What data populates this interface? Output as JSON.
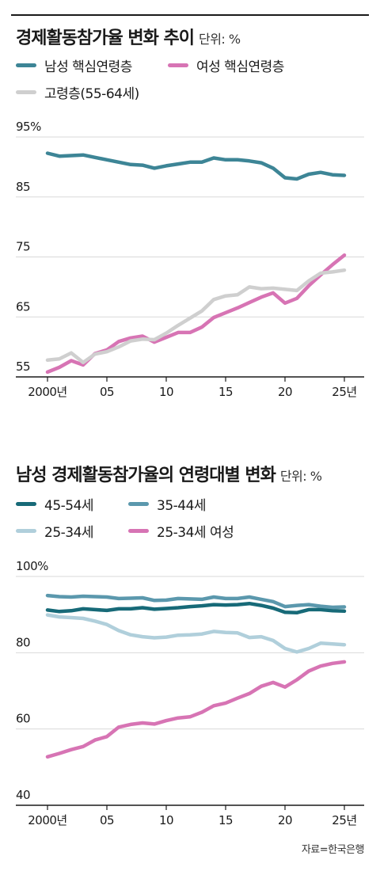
{
  "colors": {
    "teal": "#3d8596",
    "pink": "#d774b4",
    "gray": "#cfcfcf",
    "dark_teal": "#176a78",
    "steel": "#5b98ad",
    "light_blue": "#b0cfdb",
    "axis": "#1a1a1a",
    "grid": "#d9d9d9"
  },
  "source": "자료=한국은행",
  "chart1": {
    "title": "경제활동참가율 변화 추이",
    "unit": "단위: %",
    "legend": [
      {
        "label": "남성 핵심연령층",
        "color": "#3d8596"
      },
      {
        "label": "여성 핵심연령층",
        "color": "#d774b4"
      },
      {
        "label": "고령층(55-64세)",
        "color": "#cfcfcf"
      }
    ]
  },
  "chart2": {
    "title": "남성 경제활동참가율의 연령대별 변화",
    "unit": "단위: %",
    "legend": [
      {
        "label": "45-54세",
        "color": "#176a78"
      },
      {
        "label": "35-44세",
        "color": "#5b98ad"
      },
      {
        "label": "25-34세",
        "color": "#b0cfdb"
      },
      {
        "label": "25-34세 여성",
        "color": "#d774b4"
      }
    ]
  },
  "chart_data": [
    {
      "type": "line",
      "title": "경제활동참가율 변화 추이",
      "xlabel": "",
      "ylabel": "단위: %",
      "x": [
        2000,
        2001,
        2002,
        2003,
        2004,
        2005,
        2006,
        2007,
        2008,
        2009,
        2010,
        2011,
        2012,
        2013,
        2014,
        2015,
        2016,
        2017,
        2018,
        2019,
        2020,
        2021,
        2022,
        2023,
        2024,
        2025
      ],
      "x_tick_values": [
        2000,
        2005,
        2010,
        2015,
        2020,
        2025
      ],
      "x_tick_labels": [
        "2000년",
        "05",
        "10",
        "15",
        "20",
        "25년"
      ],
      "ylim": [
        55,
        95
      ],
      "y_ticks": [
        55,
        65,
        75,
        85,
        95
      ],
      "y_tick_labels": [
        "55",
        "65",
        "75",
        "85",
        "95%"
      ],
      "grid": true,
      "series": [
        {
          "name": "남성 핵심연령층",
          "color": "#3d8596",
          "values": [
            92.3,
            91.8,
            91.9,
            92.0,
            91.6,
            91.2,
            90.8,
            90.4,
            90.3,
            89.8,
            90.2,
            90.5,
            90.8,
            90.8,
            91.5,
            91.2,
            91.2,
            91.0,
            90.7,
            89.8,
            88.2,
            88.0,
            88.8,
            89.1,
            88.7,
            88.6
          ]
        },
        {
          "name": "여성 핵심연령층",
          "color": "#d774b4",
          "values": [
            55.8,
            56.6,
            57.7,
            57.0,
            58.9,
            59.5,
            60.9,
            61.5,
            61.8,
            60.8,
            61.6,
            62.4,
            62.4,
            63.3,
            64.9,
            65.7,
            66.5,
            67.4,
            68.3,
            69.0,
            67.3,
            68.1,
            70.2,
            72.0,
            73.7,
            75.3
          ]
        },
        {
          "name": "고령층(55-64세)",
          "color": "#cfcfcf",
          "values": [
            57.8,
            58.0,
            59.0,
            57.4,
            58.8,
            59.2,
            60.0,
            61.0,
            61.3,
            61.2,
            62.3,
            63.6,
            64.8,
            66.0,
            67.9,
            68.5,
            68.7,
            70.0,
            69.7,
            69.8,
            69.6,
            69.4,
            71.0,
            72.3,
            72.5,
            72.8
          ]
        }
      ]
    },
    {
      "type": "line",
      "title": "남성 경제활동참가율의 연령대별 변화",
      "xlabel": "",
      "ylabel": "단위: %",
      "x": [
        2000,
        2001,
        2002,
        2003,
        2004,
        2005,
        2006,
        2007,
        2008,
        2009,
        2010,
        2011,
        2012,
        2013,
        2014,
        2015,
        2016,
        2017,
        2018,
        2019,
        2020,
        2021,
        2022,
        2023,
        2024,
        2025
      ],
      "x_tick_values": [
        2000,
        2005,
        2010,
        2015,
        2020,
        2025
      ],
      "x_tick_labels": [
        "2000년",
        "05",
        "10",
        "15",
        "20",
        "25년"
      ],
      "ylim": [
        40,
        100
      ],
      "y_ticks": [
        40,
        60,
        80,
        100
      ],
      "y_tick_labels": [
        "40",
        "60",
        "80",
        "100%"
      ],
      "grid": true,
      "series": [
        {
          "name": "45-54세",
          "color": "#176a78",
          "values": [
            91.2,
            90.8,
            91.0,
            91.5,
            91.3,
            91.1,
            91.5,
            91.5,
            91.8,
            91.4,
            91.6,
            91.8,
            92.1,
            92.3,
            92.6,
            92.5,
            92.6,
            92.9,
            92.4,
            91.7,
            90.6,
            90.5,
            91.3,
            91.3,
            91.0,
            90.9
          ]
        },
        {
          "name": "35-44세",
          "color": "#5b98ad",
          "values": [
            95.0,
            94.7,
            94.6,
            94.8,
            94.7,
            94.6,
            94.2,
            94.3,
            94.4,
            93.7,
            93.8,
            94.2,
            94.1,
            94.0,
            94.6,
            94.2,
            94.2,
            94.6,
            94.0,
            93.4,
            92.1,
            92.4,
            92.6,
            92.2,
            91.9,
            92.0
          ]
        },
        {
          "name": "25-34세",
          "color": "#b0cfdb",
          "values": [
            89.9,
            89.4,
            89.2,
            89.0,
            88.3,
            87.4,
            85.8,
            84.7,
            84.2,
            83.9,
            84.1,
            84.6,
            84.7,
            84.9,
            85.6,
            85.3,
            85.2,
            84.0,
            84.2,
            83.2,
            81.1,
            80.2,
            81.1,
            82.5,
            82.3,
            82.1
          ]
        },
        {
          "name": "25-34세 여성",
          "color": "#d774b4",
          "values": [
            52.7,
            53.6,
            54.6,
            55.4,
            57.1,
            58.0,
            60.5,
            61.2,
            61.6,
            61.3,
            62.2,
            62.9,
            63.2,
            64.4,
            66.1,
            66.8,
            68.1,
            69.3,
            71.2,
            72.2,
            71.0,
            72.9,
            75.2,
            76.5,
            77.2,
            77.6
          ]
        }
      ]
    }
  ]
}
